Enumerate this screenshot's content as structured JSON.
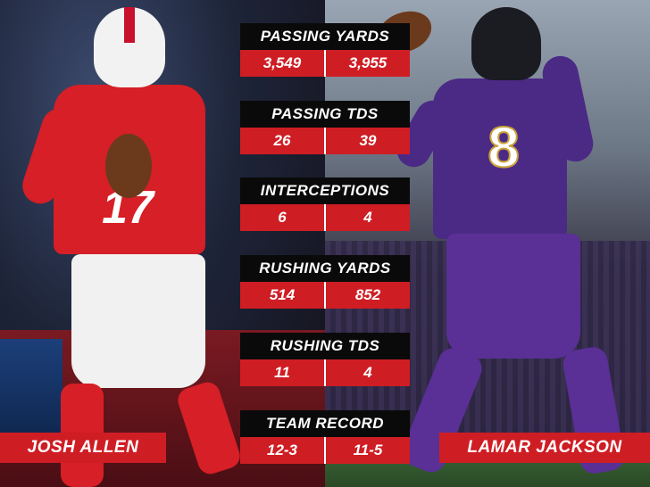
{
  "players": {
    "left": {
      "name": "JOSH ALLEN",
      "jersey_number": "17",
      "team_color": "#d61f26"
    },
    "right": {
      "name": "LAMAR JACKSON",
      "jersey_number": "8",
      "team_color": "#4b2a86"
    }
  },
  "stats": [
    {
      "label": "PASSING YARDS",
      "left": "3,549",
      "right": "3,955"
    },
    {
      "label": "PASSING TDS",
      "left": "26",
      "right": "39"
    },
    {
      "label": "INTERCEPTIONS",
      "left": "6",
      "right": "4"
    },
    {
      "label": "RUSHING YARDS",
      "left": "514",
      "right": "852"
    },
    {
      "label": "RUSHING TDS",
      "left": "11",
      "right": "4"
    },
    {
      "label": "TEAM RECORD",
      "left": "12-3",
      "right": "11-5"
    }
  ],
  "colors": {
    "accent_red": "#cf1d24",
    "header_black": "#0a0a0a"
  }
}
